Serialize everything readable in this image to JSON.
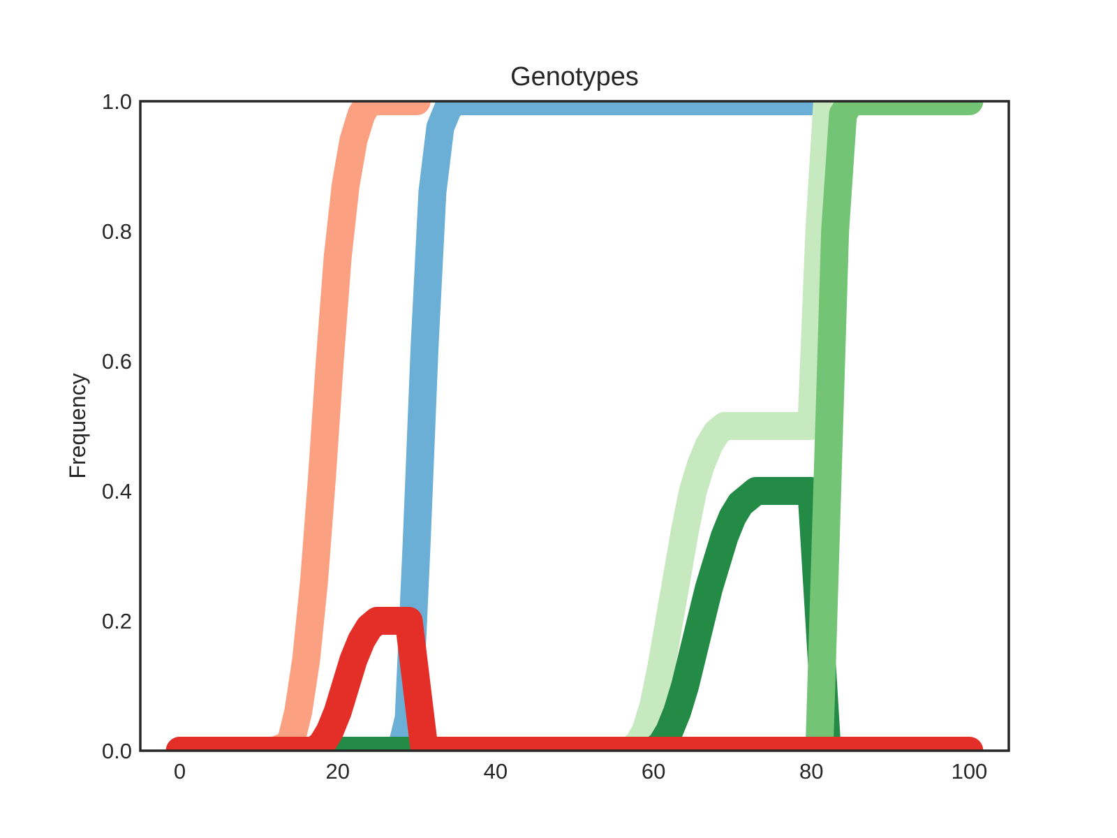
{
  "chart_data": {
    "type": "line",
    "title": "Genotypes",
    "xlabel": "",
    "ylabel": "Frequency",
    "xlim": [
      -5,
      105
    ],
    "ylim": [
      0,
      1
    ],
    "xticks": [
      "0",
      "20",
      "40",
      "60",
      "80",
      "100"
    ],
    "yticks": [
      "0.0",
      "0.2",
      "0.4",
      "0.6",
      "0.8",
      "1.0"
    ],
    "grid": false,
    "legend": "none",
    "series": [
      {
        "color": "#fca082",
        "x": [
          0,
          12,
          14,
          15,
          16,
          17,
          18,
          19,
          20,
          21,
          22,
          23,
          24,
          26,
          30
        ],
        "values": [
          0,
          0,
          0.01,
          0.06,
          0.14,
          0.26,
          0.42,
          0.6,
          0.76,
          0.87,
          0.94,
          0.98,
          1.0,
          1.0,
          1.0
        ]
      },
      {
        "color": "#6baed6",
        "x": [
          28,
          29,
          30,
          31,
          32,
          33,
          34,
          35,
          36,
          80
        ],
        "values": [
          0,
          0.05,
          0.32,
          0.62,
          0.86,
          0.96,
          0.99,
          1.0,
          1.0,
          1.0
        ]
      },
      {
        "color": "#c7e9c0",
        "x": [
          55,
          57,
          58,
          59,
          60,
          61,
          62,
          63,
          64,
          65,
          66,
          67,
          68,
          69,
          70,
          72,
          75,
          80,
          81,
          82
        ],
        "values": [
          0,
          0,
          0.01,
          0.03,
          0.07,
          0.13,
          0.2,
          0.27,
          0.34,
          0.4,
          0.44,
          0.47,
          0.49,
          0.5,
          0.5,
          0.5,
          0.5,
          0.5,
          0.8,
          1.0
        ]
      },
      {
        "color": "#238b45",
        "x": [
          18,
          30,
          55,
          58,
          60,
          61,
          62,
          63,
          64,
          65,
          66,
          67,
          68,
          69,
          70,
          71,
          72,
          73,
          75,
          77,
          80,
          81,
          82
        ],
        "values": [
          0,
          0,
          0,
          0,
          0,
          0.01,
          0.03,
          0.06,
          0.1,
          0.15,
          0.2,
          0.25,
          0.29,
          0.33,
          0.36,
          0.38,
          0.39,
          0.4,
          0.4,
          0.4,
          0.4,
          0.2,
          0
        ]
      },
      {
        "color": "#74c476",
        "x": [
          81,
          82,
          83,
          84,
          85,
          90,
          100
        ],
        "values": [
          0,
          0.4,
          0.8,
          0.98,
          1.0,
          1.0,
          1.0
        ]
      },
      {
        "color": "#e32f27",
        "x": [
          0,
          16,
          17,
          18,
          19,
          20,
          21,
          22,
          23,
          24,
          25,
          26,
          27,
          28,
          29,
          30,
          31,
          100
        ],
        "values": [
          0,
          0,
          0,
          0.01,
          0.03,
          0.06,
          0.1,
          0.14,
          0.17,
          0.19,
          0.2,
          0.2,
          0.2,
          0.2,
          0.2,
          0.1,
          0,
          0
        ]
      }
    ]
  }
}
